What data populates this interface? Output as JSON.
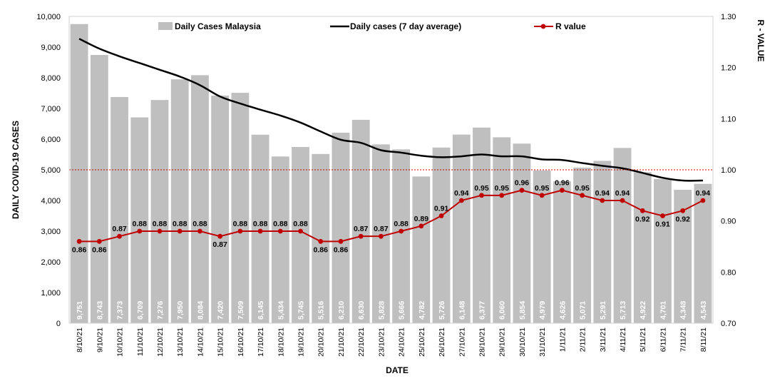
{
  "chart_data": {
    "type": "bar",
    "title": "",
    "xlabel": "DATE",
    "ylabel": "DAILY COVID-19 CASES",
    "y2label": "R - VALUE",
    "ylim": [
      0,
      10000
    ],
    "y2lim": [
      0.7,
      1.3
    ],
    "grid": false,
    "legend_position": "top",
    "reference_line": {
      "axis": "y2",
      "value": 1.0,
      "style": "dotted",
      "color": "#c00000"
    },
    "categories": [
      "8/10/21",
      "9/10/21",
      "10/10/21",
      "11/10/21",
      "12/10/21",
      "13/10/21",
      "14/10/21",
      "15/10/21",
      "16/10/21",
      "17/10/21",
      "18/10/21",
      "19/10/21",
      "20/10/21",
      "21/10/21",
      "22/10/21",
      "23/10/21",
      "24/10/21",
      "25/10/21",
      "26/10/21",
      "27/10/21",
      "28/10/21",
      "29/10/21",
      "30/10/21",
      "31/10/21",
      "1/11/21",
      "2/11/21",
      "3/11/21",
      "4/11/21",
      "5/11/21",
      "6/11/21",
      "7/11/21",
      "8/11/21"
    ],
    "y_ticks": [
      "0",
      "1,000",
      "2,000",
      "3,000",
      "4,000",
      "5,000",
      "6,000",
      "7,000",
      "8,000",
      "9,000",
      "10,000"
    ],
    "y2_ticks": [
      "0.70",
      "0.80",
      "0.90",
      "1.00",
      "1.10",
      "1.20",
      "1.30"
    ],
    "series": [
      {
        "name": "Daily Cases Malaysia",
        "type": "bar",
        "axis": "y",
        "color": "#bfbfbf",
        "values": [
          9751,
          8743,
          7373,
          6709,
          7276,
          7950,
          8084,
          7420,
          7509,
          6145,
          5434,
          5745,
          5516,
          6210,
          6630,
          5828,
          5666,
          4782,
          5726,
          6148,
          6377,
          6060,
          5854,
          4979,
          4626,
          5071,
          5291,
          5713,
          4922,
          4701,
          4348,
          4543
        ],
        "labels": [
          "9,751",
          "8,743",
          "7,373",
          "6,709",
          "7,276",
          "7,950",
          "8,084",
          "7,420",
          "7,509",
          "6,145",
          "5,434",
          "5,745",
          "5,516",
          "6,210",
          "6,630",
          "5,828",
          "5,666",
          "4,782",
          "5,726",
          "6,148",
          "6,377",
          "6,060",
          "5,854",
          "4,979",
          "4,626",
          "5,071",
          "5,291",
          "5,713",
          "4,922",
          "4,701",
          "4,348",
          "4,543"
        ]
      },
      {
        "name": "Daily cases (7 day average)",
        "type": "line",
        "axis": "y",
        "color": "#000000",
        "values": [
          9270,
          8950,
          8700,
          8480,
          8260,
          8040,
          7760,
          7390,
          7160,
          6960,
          6770,
          6540,
          6250,
          5980,
          5880,
          5640,
          5560,
          5460,
          5410,
          5440,
          5500,
          5440,
          5440,
          5340,
          5320,
          5220,
          5130,
          5050,
          4900,
          4740,
          4650,
          4650
        ]
      },
      {
        "name": "R value",
        "type": "line",
        "axis": "y2",
        "color": "#c00000",
        "values": [
          0.86,
          0.86,
          0.87,
          0.88,
          0.88,
          0.88,
          0.88,
          0.87,
          0.88,
          0.88,
          0.88,
          0.88,
          0.86,
          0.86,
          0.87,
          0.87,
          0.88,
          0.89,
          0.91,
          0.94,
          0.95,
          0.95,
          0.96,
          0.95,
          0.96,
          0.95,
          0.94,
          0.94,
          0.92,
          0.91,
          0.92,
          0.94
        ],
        "labels": [
          "0.86",
          "0.86",
          "0.87",
          "0.88",
          "0.88",
          "0.88",
          "0.88",
          "0.87",
          "0.88",
          "0.88",
          "0.88",
          "0.88",
          "0.86",
          "0.86",
          "0.87",
          "0.87",
          "0.88",
          "0.89",
          "0.91",
          "0.94",
          "0.95",
          "0.95",
          "0.96",
          "0.95",
          "0.96",
          "0.95",
          "0.94",
          "0.94",
          "0.92",
          "0.91",
          "0.92",
          "0.94"
        ]
      }
    ]
  }
}
